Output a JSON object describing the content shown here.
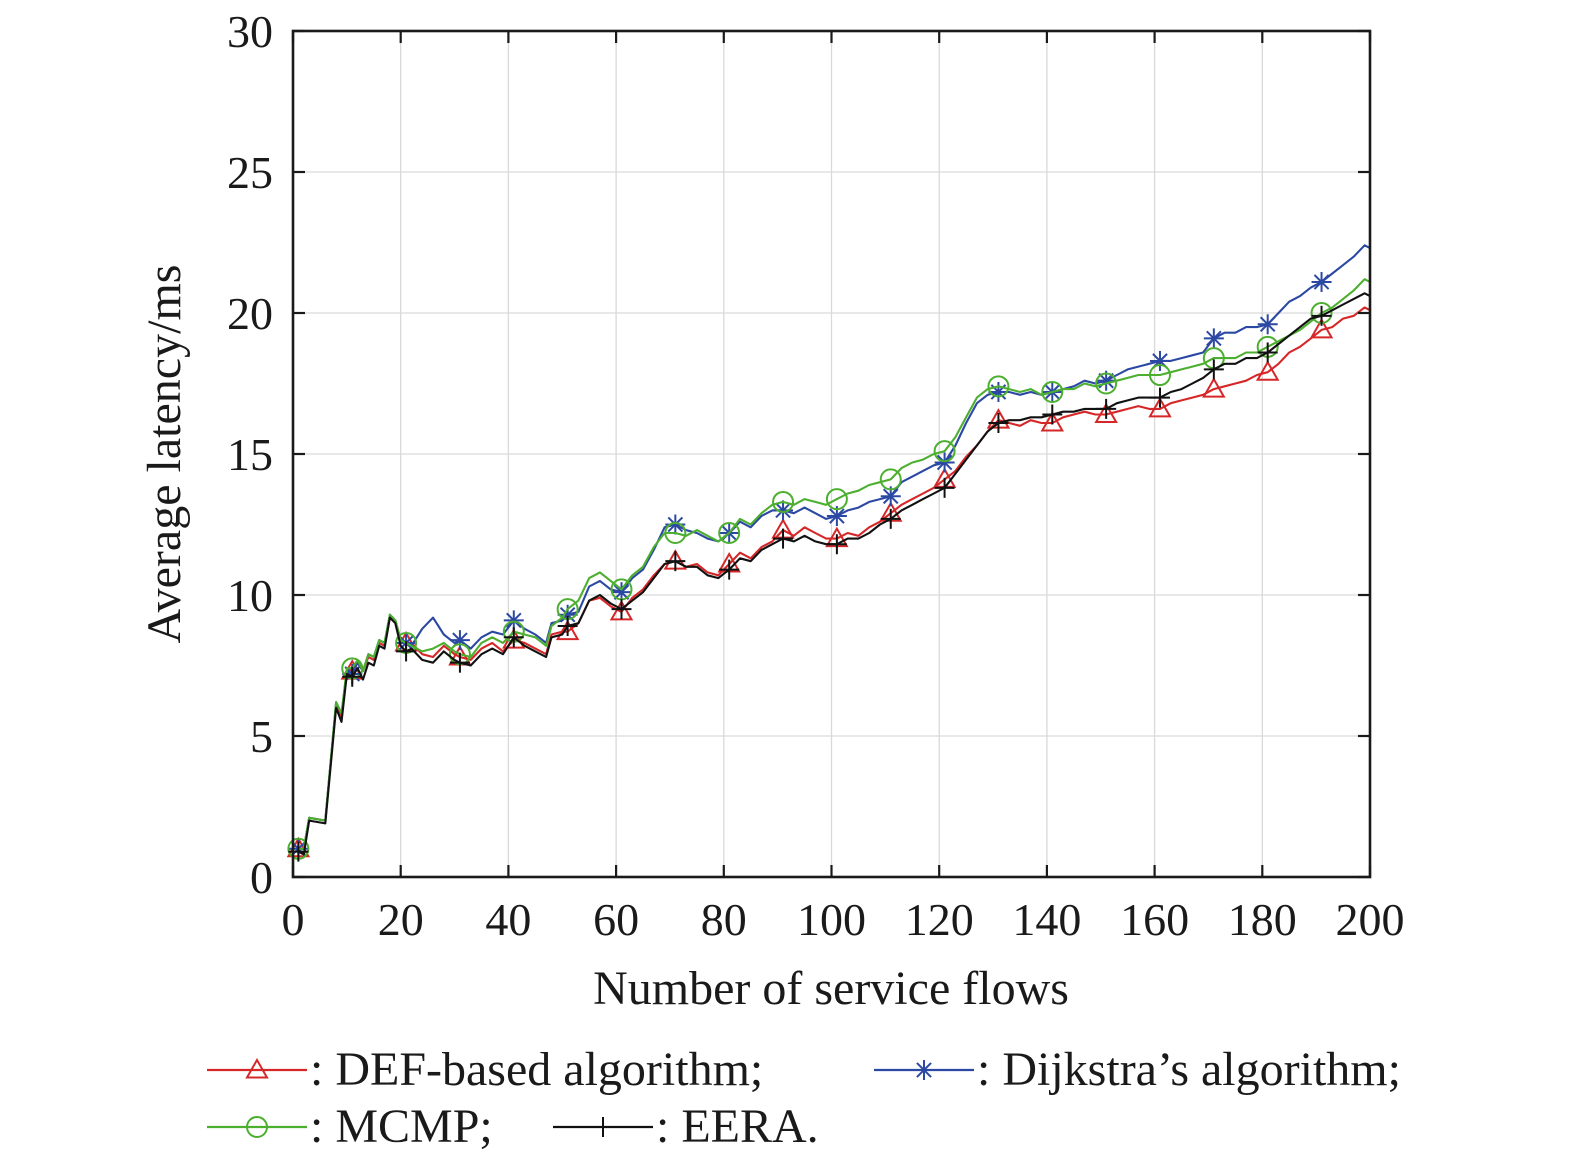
{
  "chart_data": {
    "type": "line",
    "xlabel": "Number of service flows",
    "ylabel": "Average latency/ms",
    "xlim": [
      0,
      200
    ],
    "ylim": [
      0,
      30
    ],
    "xticks": [
      "0",
      "20",
      "40",
      "60",
      "80",
      "100",
      "120",
      "140",
      "160",
      "180",
      "200"
    ],
    "yticks": [
      "0",
      "5",
      "10",
      "15",
      "20",
      "25",
      "30"
    ],
    "grid": true,
    "legend_position": "bottom",
    "series": [
      {
        "name": ": DEF-based algorithm;",
        "color": "#d62728",
        "marker": "triangle",
        "x": [
          1,
          2,
          3,
          6,
          8,
          9,
          10,
          11,
          12,
          13,
          14,
          15,
          16,
          17,
          18,
          19,
          20,
          21,
          22,
          24,
          26,
          28,
          30,
          31,
          33,
          35,
          37,
          39,
          41,
          43,
          45,
          47,
          48,
          50,
          51,
          53,
          55,
          57,
          59,
          61,
          63,
          65,
          67,
          69,
          71,
          73,
          75,
          77,
          79,
          81,
          83,
          85,
          87,
          89,
          91,
          93,
          95,
          97,
          99,
          101,
          103,
          105,
          107,
          109,
          111,
          113,
          115,
          117,
          119,
          121,
          123,
          125,
          127,
          129,
          131,
          133,
          135,
          137,
          139,
          141,
          143,
          145,
          147,
          149,
          151,
          153,
          155,
          157,
          159,
          161,
          163,
          165,
          167,
          169,
          171,
          173,
          175,
          177,
          179,
          181,
          183,
          185,
          187,
          189,
          191,
          193,
          195,
          197,
          199,
          200
        ],
        "y": [
          1.0,
          1.0,
          2.1,
          2.0,
          6.1,
          5.7,
          7.4,
          7.3,
          7.6,
          7.3,
          7.8,
          7.7,
          8.3,
          8.2,
          9.2,
          9.1,
          8.4,
          8.3,
          8.3,
          7.9,
          7.8,
          8.2,
          7.9,
          7.8,
          7.7,
          8.1,
          8.3,
          8.0,
          8.4,
          8.3,
          8.1,
          7.9,
          8.6,
          8.7,
          8.7,
          9.0,
          9.8,
          9.9,
          9.6,
          9.4,
          9.9,
          10.2,
          10.7,
          11.1,
          11.2,
          11.0,
          11.1,
          10.8,
          10.7,
          11.1,
          11.5,
          11.3,
          11.7,
          11.9,
          12.3,
          12.1,
          12.4,
          12.2,
          12.0,
          12.0,
          12.2,
          12.1,
          12.4,
          12.6,
          12.9,
          13.2,
          13.4,
          13.6,
          13.8,
          14.1,
          14.4,
          14.9,
          15.3,
          15.8,
          16.2,
          16.1,
          16.0,
          16.2,
          16.1,
          16.1,
          16.3,
          16.4,
          16.5,
          16.4,
          16.4,
          16.5,
          16.6,
          16.7,
          16.6,
          16.6,
          16.8,
          16.9,
          17.0,
          17.1,
          17.3,
          17.4,
          17.5,
          17.6,
          17.8,
          17.9,
          18.2,
          18.6,
          18.8,
          19.1,
          19.4,
          19.5,
          19.8,
          19.9,
          20.2,
          20.1
        ],
        "marker_x": [
          1,
          11,
          21,
          31,
          41,
          51,
          61,
          71,
          81,
          91,
          101,
          111,
          121,
          131,
          141,
          151,
          161,
          171,
          181,
          191
        ]
      },
      {
        "name": ": Dijkstra’s algorithm;",
        "color": "#2b48a3",
        "marker": "asterisk",
        "x": [
          1,
          2,
          3,
          6,
          8,
          9,
          10,
          11,
          12,
          13,
          14,
          15,
          16,
          17,
          18,
          19,
          20,
          21,
          22,
          24,
          26,
          28,
          30,
          31,
          33,
          35,
          37,
          39,
          41,
          43,
          45,
          47,
          48,
          50,
          51,
          53,
          55,
          57,
          59,
          61,
          63,
          65,
          67,
          69,
          71,
          73,
          75,
          77,
          79,
          81,
          83,
          85,
          87,
          89,
          91,
          93,
          95,
          97,
          99,
          101,
          103,
          105,
          107,
          109,
          111,
          113,
          115,
          117,
          119,
          121,
          123,
          125,
          127,
          129,
          131,
          133,
          135,
          137,
          139,
          141,
          143,
          145,
          147,
          149,
          151,
          153,
          155,
          157,
          159,
          161,
          163,
          165,
          167,
          169,
          171,
          173,
          175,
          177,
          179,
          181,
          183,
          185,
          187,
          189,
          191,
          193,
          195,
          197,
          199,
          200
        ],
        "y": [
          1.0,
          1.0,
          2.1,
          2.0,
          6.2,
          5.8,
          7.3,
          7.2,
          7.6,
          7.3,
          7.9,
          7.8,
          8.4,
          8.3,
          9.3,
          9.1,
          8.4,
          8.3,
          8.2,
          8.8,
          9.2,
          8.6,
          8.3,
          8.4,
          8.1,
          8.5,
          8.7,
          8.6,
          9.1,
          8.8,
          8.6,
          8.3,
          9.0,
          9.1,
          9.3,
          9.4,
          10.3,
          10.5,
          10.2,
          10.1,
          10.6,
          10.9,
          11.6,
          12.4,
          12.5,
          12.3,
          12.2,
          12.0,
          11.9,
          12.2,
          12.6,
          12.4,
          12.8,
          13.0,
          13.0,
          12.9,
          13.1,
          12.9,
          12.7,
          12.8,
          13.0,
          13.1,
          13.3,
          13.4,
          13.5,
          14.0,
          14.2,
          14.4,
          14.6,
          14.7,
          15.3,
          16.1,
          16.8,
          17.1,
          17.2,
          17.2,
          17.1,
          17.2,
          17.1,
          17.2,
          17.3,
          17.4,
          17.6,
          17.5,
          17.6,
          17.8,
          18.0,
          18.1,
          18.2,
          18.3,
          18.3,
          18.4,
          18.5,
          18.6,
          19.1,
          19.3,
          19.3,
          19.5,
          19.5,
          19.6,
          20.0,
          20.4,
          20.6,
          20.9,
          21.1,
          21.4,
          21.7,
          22.0,
          22.4,
          22.3
        ],
        "marker_x": [
          1,
          11,
          21,
          31,
          41,
          51,
          61,
          71,
          81,
          91,
          101,
          111,
          121,
          131,
          141,
          151,
          161,
          171,
          181,
          191
        ]
      },
      {
        "name": ": MCMP;",
        "color": "#4caf2f",
        "marker": "circle",
        "x": [
          1,
          2,
          3,
          6,
          8,
          9,
          10,
          11,
          12,
          13,
          14,
          15,
          16,
          17,
          18,
          19,
          20,
          21,
          22,
          24,
          26,
          28,
          30,
          31,
          33,
          35,
          37,
          39,
          41,
          43,
          45,
          47,
          48,
          50,
          51,
          53,
          55,
          57,
          59,
          61,
          63,
          65,
          67,
          69,
          71,
          73,
          75,
          77,
          79,
          81,
          83,
          85,
          87,
          89,
          91,
          93,
          95,
          97,
          99,
          101,
          103,
          105,
          107,
          109,
          111,
          113,
          115,
          117,
          119,
          121,
          123,
          125,
          127,
          129,
          131,
          133,
          135,
          137,
          139,
          141,
          143,
          145,
          147,
          149,
          151,
          153,
          155,
          157,
          159,
          161,
          163,
          165,
          167,
          169,
          171,
          173,
          175,
          177,
          179,
          181,
          183,
          185,
          187,
          189,
          191,
          193,
          195,
          197,
          199,
          200
        ],
        "y": [
          1.0,
          1.0,
          2.1,
          2.0,
          6.2,
          5.8,
          7.4,
          7.4,
          7.7,
          7.3,
          7.9,
          7.8,
          8.4,
          8.3,
          9.3,
          9.1,
          8.4,
          8.3,
          8.2,
          8.0,
          8.1,
          8.3,
          8.0,
          7.9,
          7.8,
          8.3,
          8.5,
          8.3,
          8.7,
          8.6,
          8.5,
          8.2,
          8.9,
          9.2,
          9.5,
          9.8,
          10.6,
          10.8,
          10.5,
          10.2,
          10.7,
          11.0,
          11.7,
          12.2,
          12.2,
          12.1,
          12.3,
          12.1,
          11.9,
          12.2,
          12.7,
          12.5,
          12.9,
          13.2,
          13.3,
          13.2,
          13.4,
          13.3,
          13.2,
          13.4,
          13.6,
          13.7,
          13.9,
          14.0,
          14.1,
          14.5,
          14.7,
          14.8,
          15.0,
          15.1,
          15.6,
          16.3,
          17.0,
          17.3,
          17.4,
          17.3,
          17.2,
          17.3,
          17.1,
          17.2,
          17.3,
          17.3,
          17.5,
          17.4,
          17.5,
          17.6,
          17.7,
          17.8,
          17.8,
          17.8,
          17.9,
          18.0,
          18.1,
          18.2,
          18.4,
          18.4,
          18.4,
          18.6,
          18.6,
          18.8,
          19.0,
          19.2,
          19.4,
          19.7,
          20.0,
          20.2,
          20.5,
          20.8,
          21.2,
          21.1
        ],
        "marker_x": [
          1,
          11,
          21,
          31,
          41,
          51,
          61,
          71,
          81,
          91,
          101,
          111,
          121,
          131,
          141,
          151,
          161,
          171,
          181,
          191
        ]
      },
      {
        "name": ": EERA.",
        "color": "#111111",
        "marker": "plus",
        "x": [
          1,
          2,
          3,
          6,
          8,
          9,
          10,
          11,
          12,
          13,
          14,
          15,
          16,
          17,
          18,
          19,
          20,
          21,
          22,
          24,
          26,
          28,
          30,
          31,
          33,
          35,
          37,
          39,
          41,
          43,
          45,
          47,
          48,
          50,
          51,
          53,
          55,
          57,
          59,
          61,
          63,
          65,
          67,
          69,
          71,
          73,
          75,
          77,
          79,
          81,
          83,
          85,
          87,
          89,
          91,
          93,
          95,
          97,
          99,
          101,
          103,
          105,
          107,
          109,
          111,
          113,
          115,
          117,
          119,
          121,
          123,
          125,
          127,
          129,
          131,
          133,
          135,
          137,
          139,
          141,
          143,
          145,
          147,
          149,
          151,
          153,
          155,
          157,
          159,
          161,
          163,
          165,
          167,
          169,
          171,
          173,
          175,
          177,
          179,
          181,
          183,
          185,
          187,
          189,
          191,
          193,
          195,
          197,
          199,
          200
        ],
        "y": [
          0.9,
          0.8,
          2.0,
          1.9,
          6.0,
          5.5,
          7.2,
          7.1,
          7.4,
          7.0,
          7.6,
          7.5,
          8.2,
          8.1,
          9.2,
          9.0,
          8.2,
          8.0,
          8.1,
          7.7,
          7.6,
          8.0,
          7.7,
          7.6,
          7.5,
          7.9,
          8.1,
          7.9,
          8.5,
          8.2,
          8.0,
          7.8,
          8.5,
          8.6,
          8.9,
          9.0,
          9.8,
          10.0,
          9.7,
          9.5,
          9.8,
          10.1,
          10.6,
          11.1,
          11.2,
          11.0,
          11.0,
          10.7,
          10.6,
          10.9,
          11.3,
          11.2,
          11.6,
          11.8,
          12.0,
          11.9,
          12.1,
          11.9,
          11.8,
          11.8,
          12.0,
          12.0,
          12.2,
          12.5,
          12.7,
          13.0,
          13.2,
          13.4,
          13.6,
          13.8,
          14.3,
          14.8,
          15.3,
          15.8,
          16.1,
          16.2,
          16.2,
          16.3,
          16.3,
          16.4,
          16.5,
          16.5,
          16.6,
          16.6,
          16.6,
          16.8,
          16.9,
          17.0,
          17.0,
          17.0,
          17.2,
          17.3,
          17.5,
          17.7,
          18.0,
          18.2,
          18.2,
          18.4,
          18.4,
          18.6,
          18.9,
          19.2,
          19.5,
          19.8,
          19.9,
          20.1,
          20.3,
          20.5,
          20.7,
          20.6
        ],
        "marker_x": [
          1,
          11,
          21,
          31,
          41,
          51,
          61,
          71,
          81,
          91,
          101,
          111,
          121,
          131,
          141,
          151,
          161,
          171,
          181,
          191
        ]
      }
    ]
  }
}
